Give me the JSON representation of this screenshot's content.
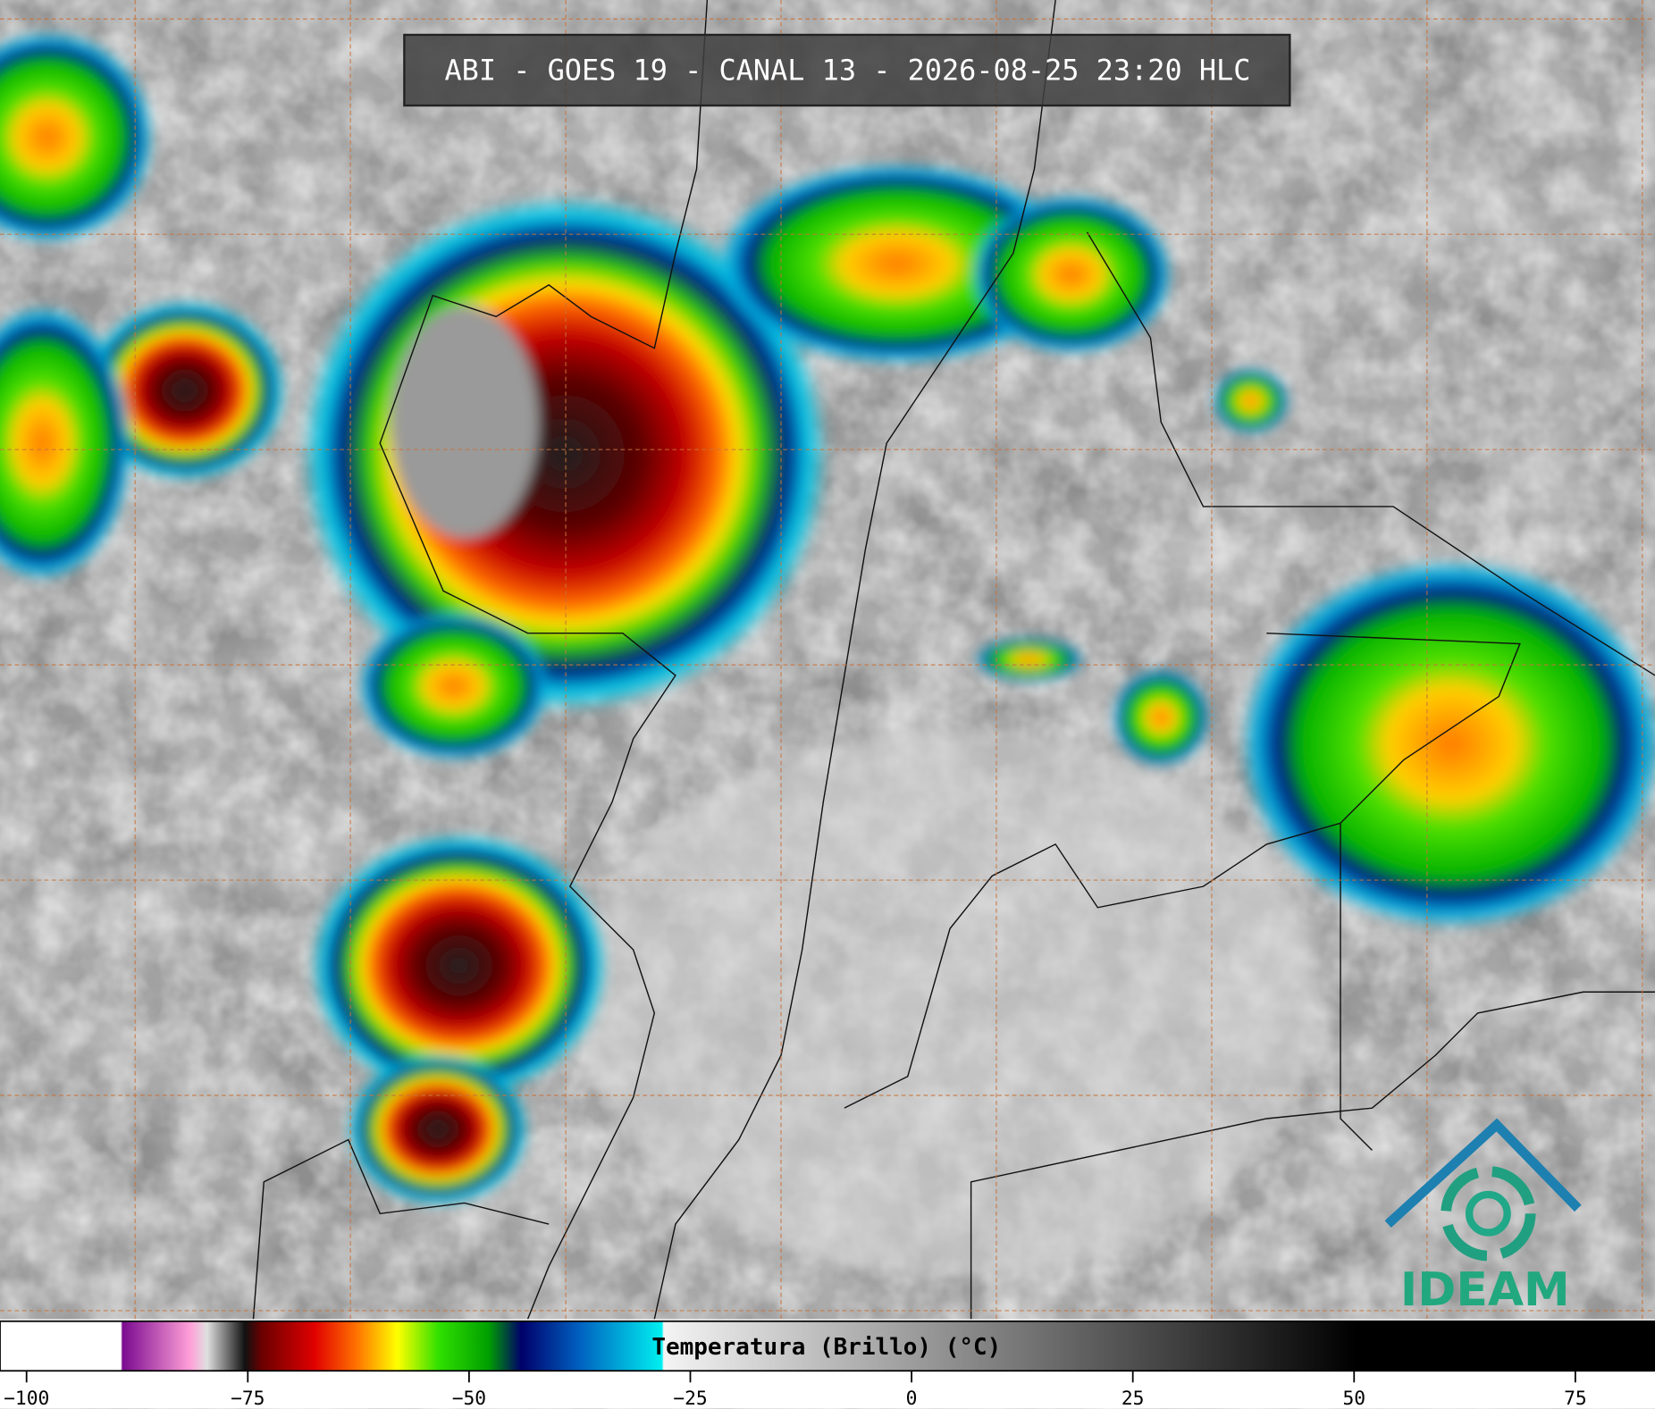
{
  "header": {
    "title": "ABI - GOES 19 - CANAL 13 - 2026-08-25 23:20 HLC"
  },
  "colorbar": {
    "label": "Temperatura (Brillo) (°C)",
    "xlim": [
      -103,
      84
    ],
    "xticks": [
      {
        "value": -100,
        "label": "−100"
      },
      {
        "value": -75,
        "label": "−75"
      },
      {
        "value": -50,
        "label": "−50"
      },
      {
        "value": -25,
        "label": "−25"
      },
      0,
      25,
      50,
      75
    ]
  },
  "logo": {
    "text": "IDEAM"
  }
}
